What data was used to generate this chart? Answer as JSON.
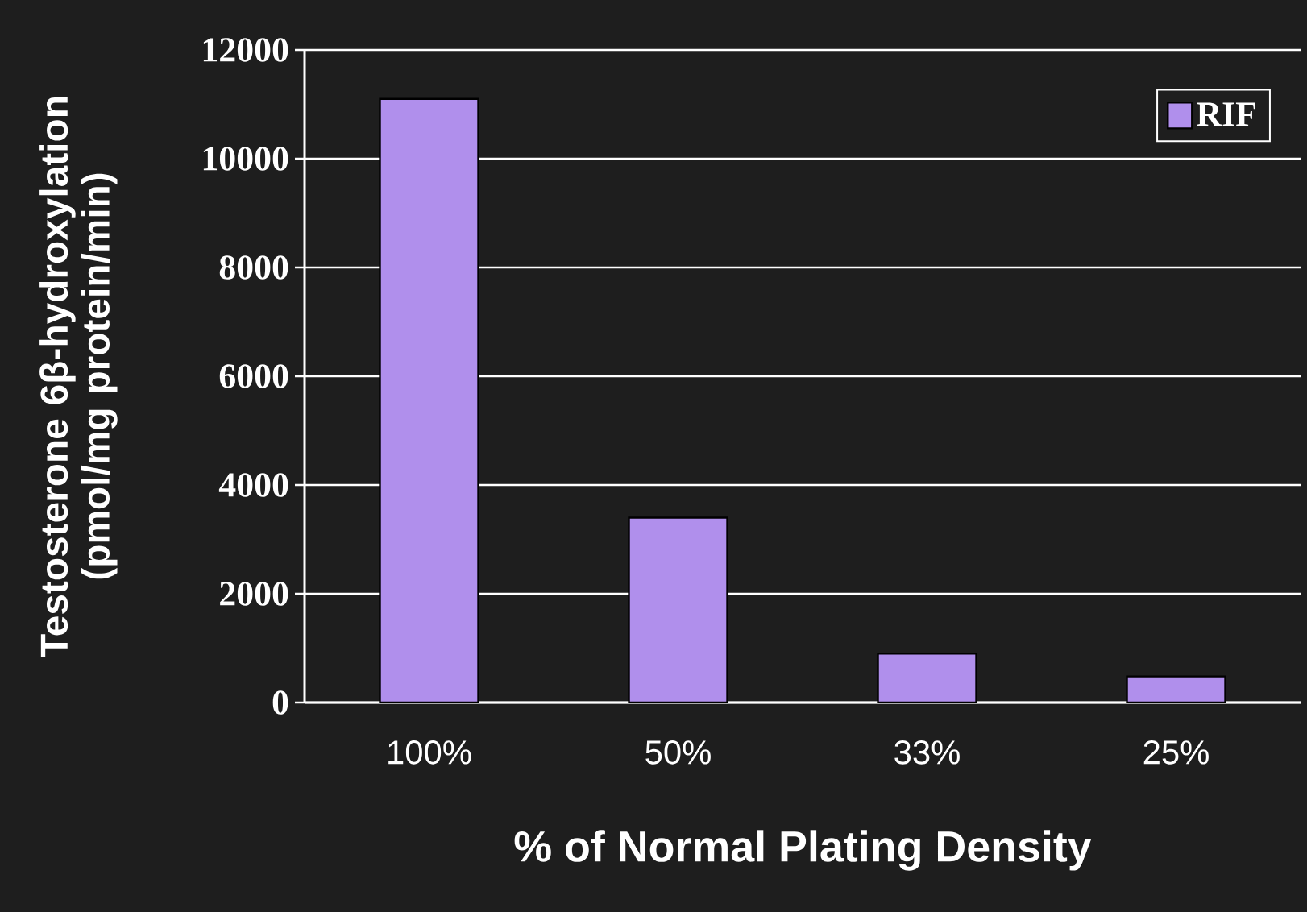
{
  "chart_data": {
    "type": "bar",
    "xlabel": "% of Normal Plating Density",
    "ylabel": "Testosterone 6β-hydroxylation (pmol/mg protein/min)",
    "categories": [
      "100%",
      "50%",
      "33%",
      "25%"
    ],
    "series": [
      {
        "name": "RIF",
        "color": "#b08fec",
        "values": [
          11100,
          3400,
          900,
          480
        ]
      }
    ],
    "ylim": [
      0,
      12000
    ],
    "yticks": [
      0,
      2000,
      4000,
      6000,
      8000,
      10000,
      12000
    ],
    "grid": "y",
    "legend": "top right"
  }
}
